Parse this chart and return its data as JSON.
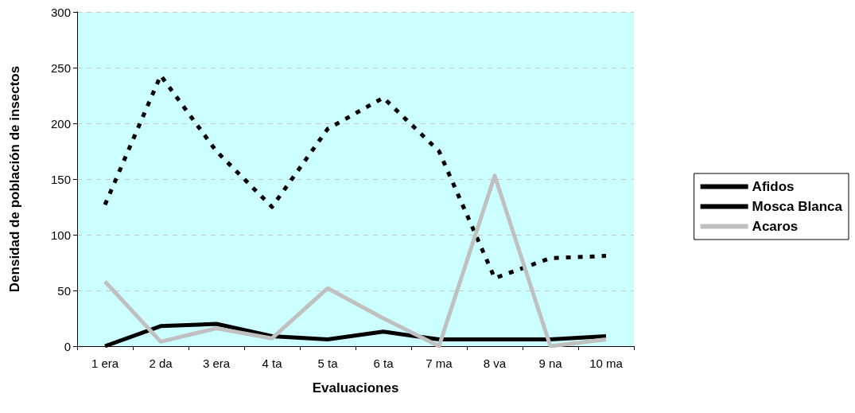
{
  "chart_data": {
    "type": "line",
    "xlabel": "Evaluaciones",
    "ylabel": "Densidad de población de insectos",
    "categories": [
      "1 era",
      "2 da",
      "3 era",
      "4 ta",
      "5 ta",
      "6 ta",
      "7 ma",
      "8 va",
      "9 na",
      "10 ma"
    ],
    "series": [
      {
        "name": "Afidos",
        "color": "#000000",
        "line_style": "dashed",
        "values": [
          127,
          243,
          175,
          125,
          195,
          223,
          175,
          61,
          79,
          81
        ]
      },
      {
        "name": "Mosca Blanca",
        "color": "#000000",
        "line_style": "solid",
        "values": [
          0,
          18,
          20,
          9,
          6,
          13,
          6,
          6,
          6,
          9
        ]
      },
      {
        "name": "Acaros",
        "color": "#c0c0c0",
        "line_style": "solid",
        "values": [
          58,
          4,
          16,
          7,
          52,
          25,
          0,
          153,
          0,
          6
        ]
      }
    ],
    "ylim": [
      0,
      300
    ],
    "yticks": [
      0,
      50,
      100,
      150,
      200,
      250,
      300
    ],
    "grid": "y",
    "legend": "right",
    "marker": "none"
  }
}
